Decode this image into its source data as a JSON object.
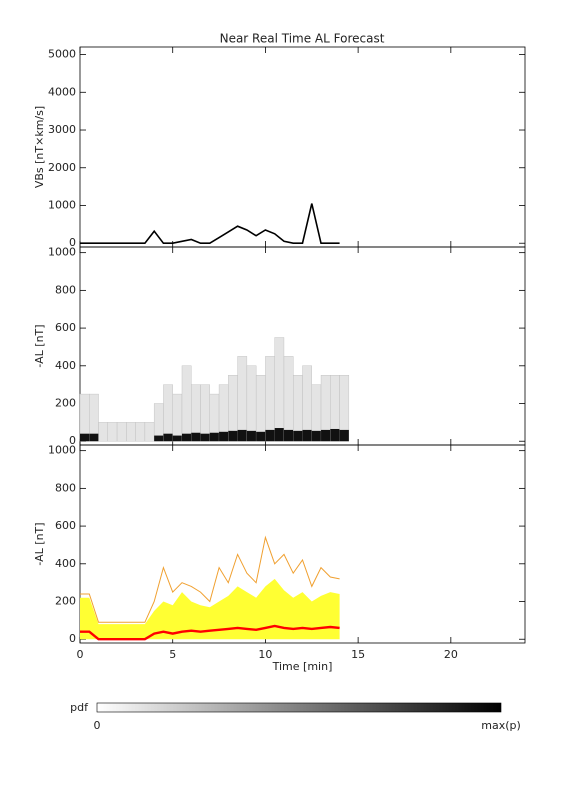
{
  "chart_data": [
    {
      "type": "line",
      "title": "Near Real Time AL Forecast",
      "y_label": "VBs [nT×km/s]",
      "x": [
        0,
        0.5,
        1,
        1.5,
        2,
        2.5,
        3,
        3.5,
        4,
        4.5,
        5,
        5.5,
        6,
        6.5,
        7,
        7.5,
        8,
        8.5,
        9,
        9.5,
        10,
        10.5,
        11,
        11.5,
        12,
        12.5,
        13,
        13.5,
        14
      ],
      "values": [
        0,
        0,
        0,
        0,
        0,
        0,
        0,
        0,
        320,
        0,
        0,
        50,
        100,
        0,
        0,
        150,
        300,
        450,
        350,
        200,
        350,
        250,
        50,
        0,
        0,
        1050,
        0,
        0,
        0
      ],
      "color": "#000000",
      "xlim": [
        0,
        24
      ],
      "ylim": [
        -100,
        5200
      ],
      "yticks": [
        0,
        1000,
        2000,
        3000,
        4000,
        5000
      ]
    },
    {
      "type": "density",
      "y_label": "-AL [nT]",
      "x": [
        0,
        0.5,
        1,
        1.5,
        2,
        2.5,
        3,
        3.5,
        4,
        4.5,
        5,
        5.5,
        6,
        6.5,
        7,
        7.5,
        8,
        8.5,
        9,
        9.5,
        10,
        10.5,
        11,
        11.5,
        12,
        12.5,
        13,
        13.5,
        14
      ],
      "values": [
        250,
        250,
        100,
        100,
        100,
        100,
        100,
        100,
        200,
        300,
        250,
        400,
        300,
        300,
        250,
        300,
        350,
        450,
        400,
        350,
        450,
        550,
        450,
        350,
        400,
        300,
        350,
        350,
        350
      ],
      "core": [
        40,
        40,
        0,
        0,
        0,
        0,
        0,
        0,
        30,
        40,
        30,
        40,
        45,
        40,
        45,
        50,
        55,
        60,
        55,
        50,
        60,
        70,
        60,
        55,
        60,
        55,
        60,
        65,
        60
      ],
      "xlim": [
        0,
        24
      ],
      "ylim": [
        -20,
        1030
      ],
      "yticks": [
        0,
        200,
        400,
        600,
        800,
        1000
      ]
    },
    {
      "type": "band",
      "y_label": "-AL [nT]",
      "x_label": "Time [min]",
      "x": [
        0,
        0.5,
        1,
        1.5,
        2,
        2.5,
        3,
        3.5,
        4,
        4.5,
        5,
        5.5,
        6,
        6.5,
        7,
        7.5,
        8,
        8.5,
        9,
        9.5,
        10,
        10.5,
        11,
        11.5,
        12,
        12.5,
        13,
        13.5,
        14
      ],
      "series": [
        {
          "color": "#ffff33",
          "values": [
            220,
            220,
            80,
            80,
            80,
            80,
            80,
            80,
            150,
            200,
            180,
            250,
            200,
            180,
            170,
            200,
            230,
            280,
            250,
            220,
            280,
            320,
            260,
            220,
            250,
            200,
            230,
            250,
            240
          ]
        },
        {
          "color": "#f0a030",
          "values": [
            240,
            240,
            90,
            90,
            90,
            90,
            90,
            90,
            200,
            380,
            250,
            300,
            280,
            250,
            200,
            380,
            300,
            450,
            350,
            300,
            540,
            400,
            450,
            350,
            420,
            280,
            380,
            330,
            320
          ]
        },
        {
          "color": "#ff0000",
          "values": [
            40,
            40,
            0,
            0,
            0,
            0,
            0,
            0,
            30,
            40,
            30,
            40,
            45,
            40,
            45,
            50,
            55,
            60,
            55,
            50,
            60,
            70,
            60,
            55,
            60,
            55,
            60,
            65,
            60
          ]
        }
      ],
      "xlim": [
        0,
        24
      ],
      "ylim": [
        -20,
        1030
      ],
      "yticks": [
        0,
        200,
        400,
        600,
        800,
        1000
      ],
      "xticks": [
        0,
        5,
        10,
        15,
        20
      ]
    }
  ],
  "colorbar": {
    "label": "pdf",
    "min_label": "0",
    "max_label": "max(p)"
  }
}
